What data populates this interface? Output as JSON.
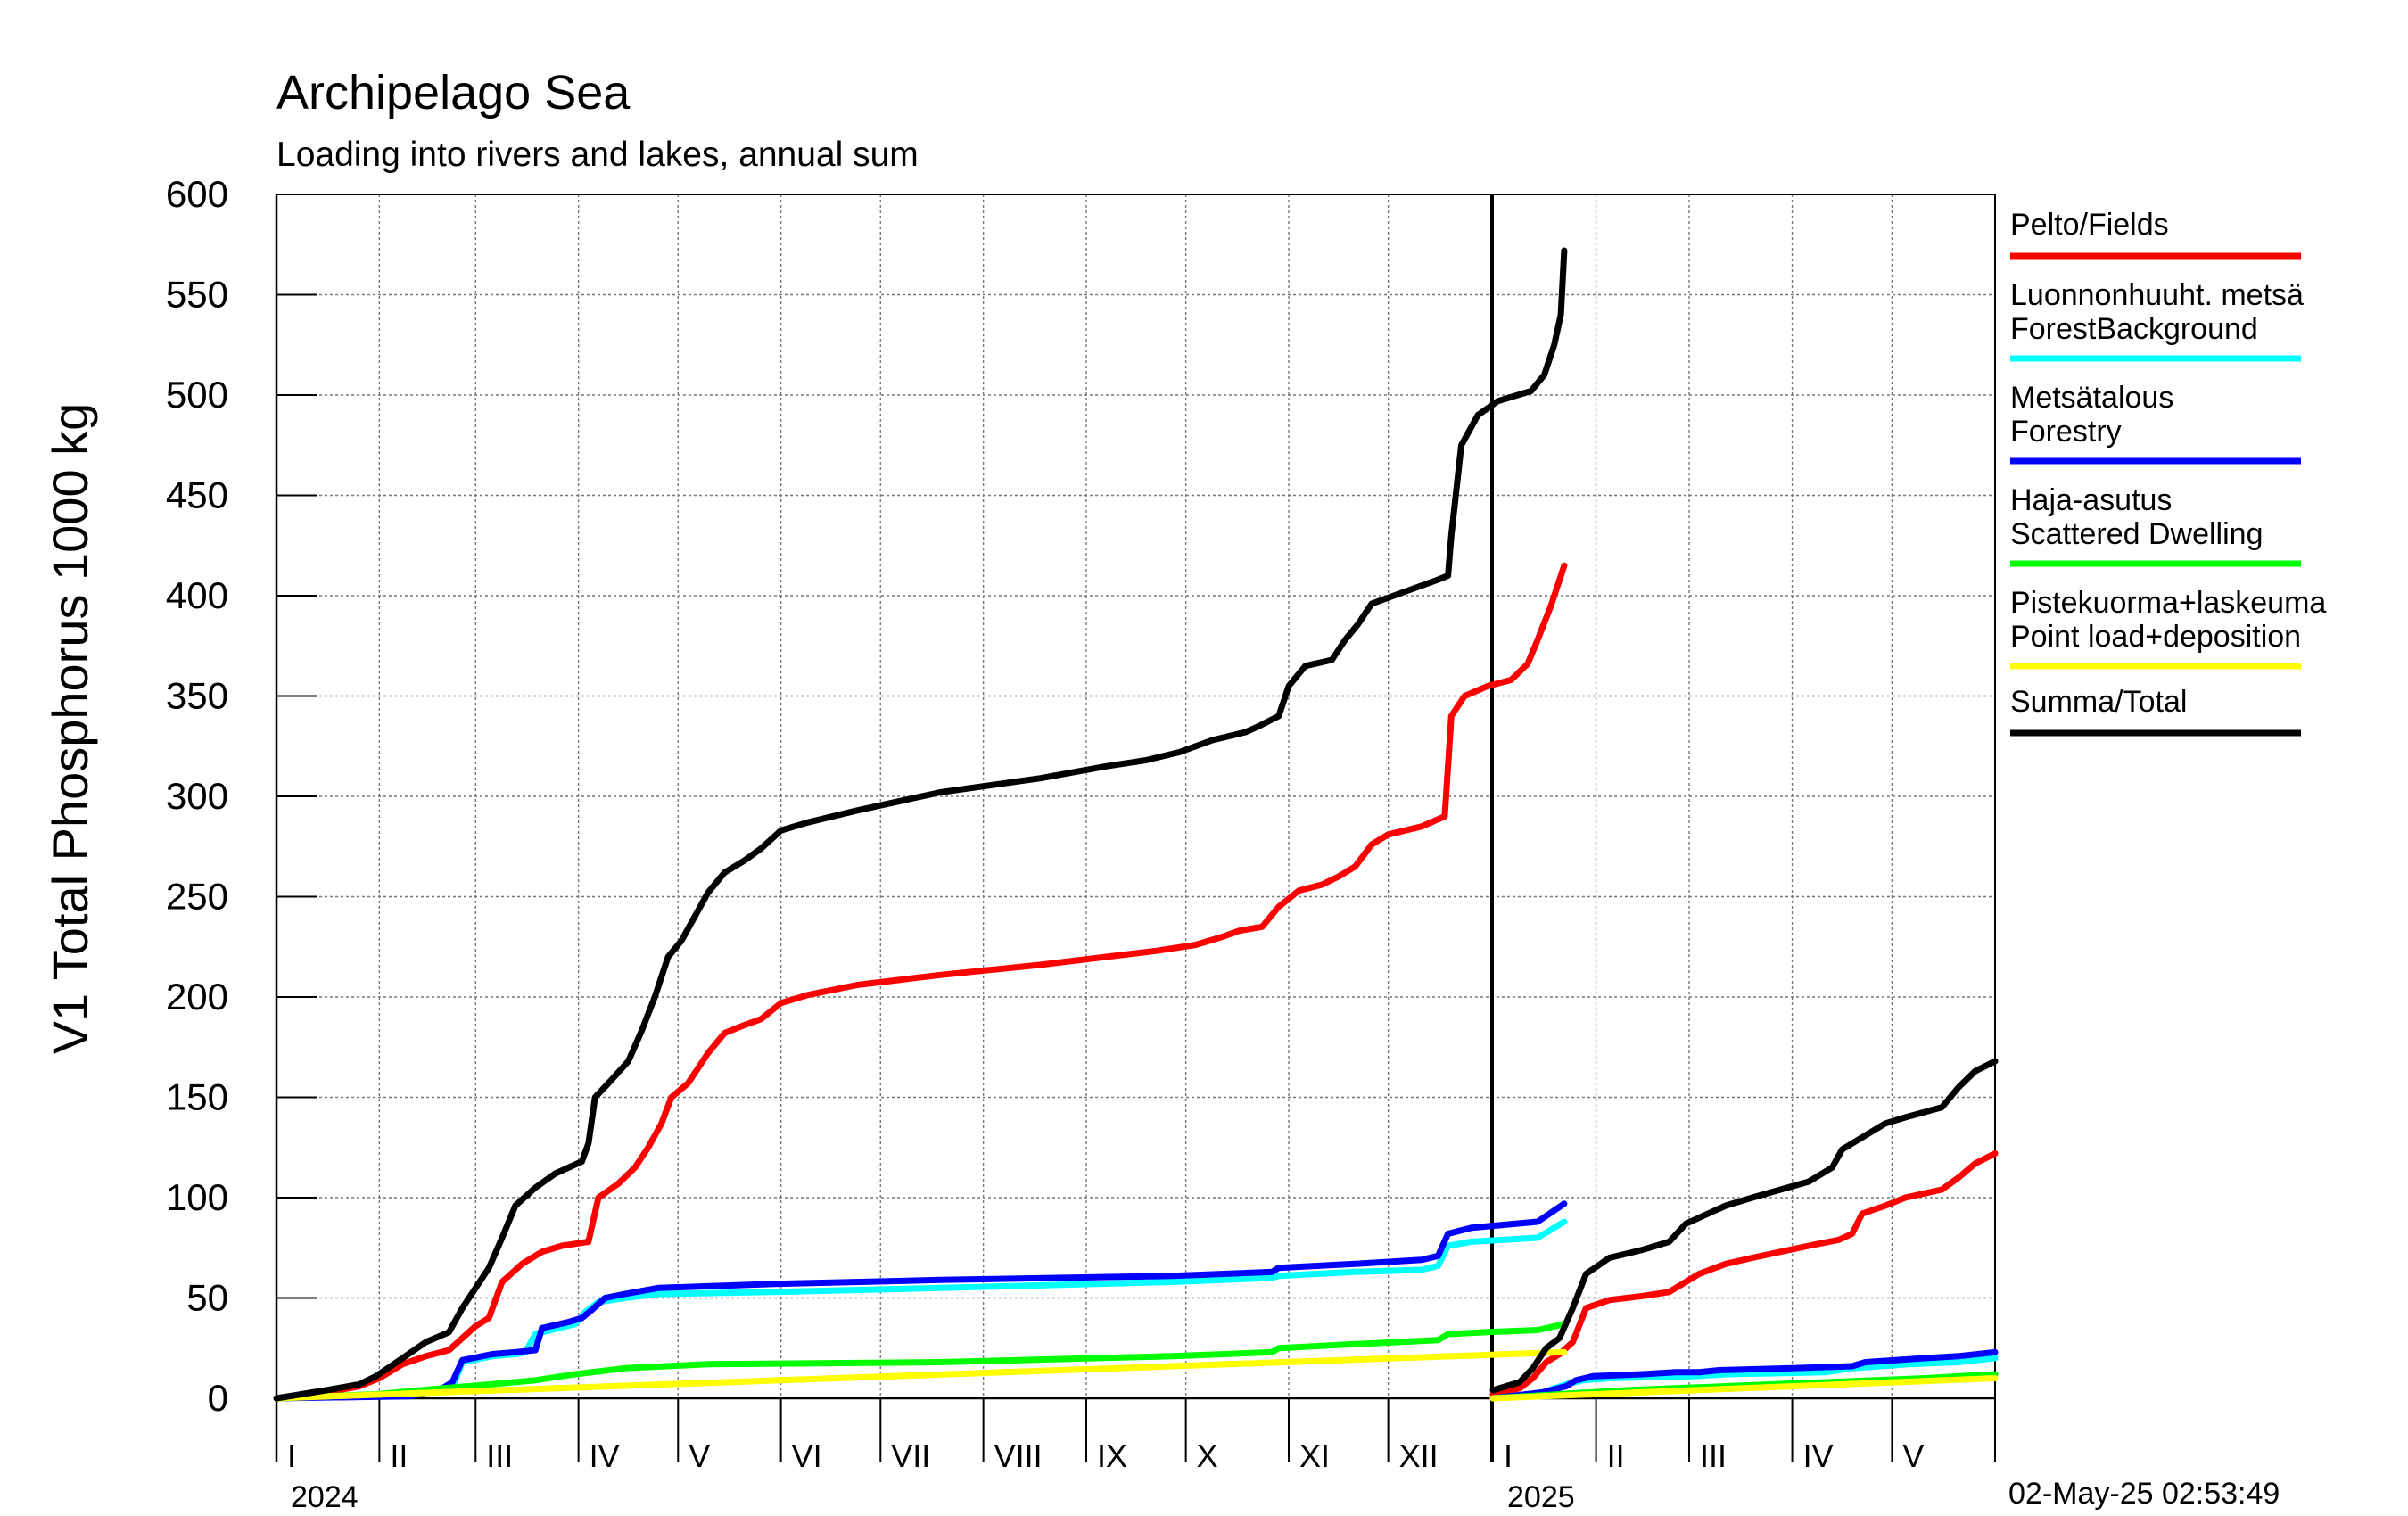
{
  "chart_data": {
    "type": "line",
    "title": "Archipelago Sea",
    "subtitle": "Loading into rivers and lakes, annual sum",
    "ylabel": "V1 Total Phosphorus 1000 kg",
    "ylim": [
      0,
      600
    ],
    "yticks": [
      0,
      50,
      100,
      150,
      200,
      250,
      300,
      350,
      400,
      450,
      500,
      550,
      600
    ],
    "grid": true,
    "legend_position": "right",
    "timestamp": "02-May-25 02:53:49",
    "panels": [
      {
        "year_label": "2024",
        "month_ticks": [
          "I",
          "II",
          "III",
          "IV",
          "V",
          "VI",
          "VII",
          "VIII",
          "IX",
          "X",
          "XI",
          "XII"
        ],
        "x_unit": "day of year",
        "xlim": [
          0,
          366
        ]
      },
      {
        "year_label": "2025",
        "month_ticks": [
          "I",
          "II",
          "III",
          "IV",
          "V"
        ],
        "x_unit": "day of year",
        "xlim": [
          0,
          151
        ]
      }
    ],
    "series": [
      {
        "name": "Pelto/Fields",
        "color": "#ff0000",
        "values_2024": [
          [
            0,
            0
          ],
          [
            15,
            3
          ],
          [
            25,
            6
          ],
          [
            31,
            10
          ],
          [
            38,
            17
          ],
          [
            45,
            21
          ],
          [
            52,
            24
          ],
          [
            56,
            30
          ],
          [
            60,
            36
          ],
          [
            64,
            40
          ],
          [
            68,
            58
          ],
          [
            74,
            67
          ],
          [
            80,
            73
          ],
          [
            86,
            76
          ],
          [
            94,
            78
          ],
          [
            97,
            100
          ],
          [
            103,
            107
          ],
          [
            108,
            115
          ],
          [
            112,
            125
          ],
          [
            116,
            137
          ],
          [
            119,
            150
          ],
          [
            124,
            157
          ],
          [
            130,
            172
          ],
          [
            135,
            182
          ],
          [
            141,
            186
          ],
          [
            146,
            189
          ],
          [
            152,
            197
          ],
          [
            160,
            201
          ],
          [
            175,
            206
          ],
          [
            200,
            211
          ],
          [
            230,
            216
          ],
          [
            250,
            220
          ],
          [
            265,
            223
          ],
          [
            277,
            226
          ],
          [
            285,
            230
          ],
          [
            290,
            233
          ],
          [
            297,
            235
          ],
          [
            302,
            245
          ],
          [
            308,
            253
          ],
          [
            315,
            256
          ],
          [
            320,
            260
          ],
          [
            325,
            265
          ],
          [
            330,
            276
          ],
          [
            335,
            281
          ],
          [
            345,
            285
          ],
          [
            352,
            290
          ],
          [
            354,
            340
          ],
          [
            358,
            350
          ],
          [
            365,
            355
          ],
          [
            372,
            358
          ],
          [
            377,
            366
          ],
          [
            380,
            378
          ],
          [
            384,
            395
          ],
          [
            388,
            415
          ]
        ],
        "values_2025": [
          [
            0,
            2
          ],
          [
            8,
            5
          ],
          [
            12,
            10
          ],
          [
            16,
            18
          ],
          [
            20,
            22
          ],
          [
            24,
            28
          ],
          [
            28,
            45
          ],
          [
            35,
            49
          ],
          [
            45,
            51
          ],
          [
            53,
            53
          ],
          [
            58,
            58
          ],
          [
            62,
            62
          ],
          [
            70,
            67
          ],
          [
            78,
            70
          ],
          [
            95,
            76
          ],
          [
            104,
            79
          ],
          [
            108,
            82
          ],
          [
            111,
            92
          ],
          [
            118,
            96
          ],
          [
            124,
            100
          ],
          [
            135,
            104
          ],
          [
            140,
            110
          ],
          [
            145,
            117
          ],
          [
            151,
            122
          ]
        ]
      },
      {
        "name": "Luonnonhuuht. metsä ForestBackground",
        "color": "#00ffff",
        "values_2024": [
          [
            0,
            0
          ],
          [
            40,
            2
          ],
          [
            46,
            3
          ],
          [
            53,
            5
          ],
          [
            56,
            18
          ],
          [
            65,
            21
          ],
          [
            72,
            22
          ],
          [
            75,
            23
          ],
          [
            78,
            32
          ],
          [
            85,
            35
          ],
          [
            90,
            37
          ],
          [
            93,
            43
          ],
          [
            97,
            48
          ],
          [
            105,
            50
          ],
          [
            115,
            52
          ],
          [
            150,
            53
          ],
          [
            200,
            55
          ],
          [
            270,
            58
          ],
          [
            300,
            60
          ],
          [
            302,
            61
          ],
          [
            325,
            63
          ],
          [
            345,
            64
          ],
          [
            350,
            66
          ],
          [
            353,
            76
          ],
          [
            360,
            78
          ],
          [
            380,
            80
          ],
          [
            388,
            88
          ]
        ],
        "values_2025": [
          [
            0,
            0
          ],
          [
            15,
            3
          ],
          [
            22,
            7
          ],
          [
            27,
            9
          ],
          [
            35,
            10
          ],
          [
            60,
            11
          ],
          [
            70,
            12
          ],
          [
            100,
            13
          ],
          [
            108,
            15
          ],
          [
            125,
            17
          ],
          [
            140,
            18
          ],
          [
            151,
            20
          ]
        ]
      },
      {
        "name": "Metsätalous Forestry",
        "color": "#0000ff",
        "values_2024": [
          [
            0,
            0
          ],
          [
            40,
            1
          ],
          [
            46,
            3
          ],
          [
            50,
            5
          ],
          [
            53,
            8
          ],
          [
            56,
            19
          ],
          [
            65,
            22
          ],
          [
            72,
            23
          ],
          [
            78,
            24
          ],
          [
            80,
            35
          ],
          [
            88,
            38
          ],
          [
            92,
            40
          ],
          [
            95,
            44
          ],
          [
            99,
            50
          ],
          [
            105,
            52
          ],
          [
            115,
            55
          ],
          [
            150,
            57
          ],
          [
            200,
            59
          ],
          [
            270,
            61
          ],
          [
            300,
            63
          ],
          [
            302,
            65
          ],
          [
            325,
            67
          ],
          [
            345,
            69
          ],
          [
            350,
            71
          ],
          [
            353,
            82
          ],
          [
            360,
            85
          ],
          [
            380,
            88
          ],
          [
            388,
            97
          ]
        ],
        "values_2025": [
          [
            0,
            0
          ],
          [
            15,
            3
          ],
          [
            22,
            6
          ],
          [
            25,
            9
          ],
          [
            30,
            11
          ],
          [
            45,
            12
          ],
          [
            55,
            13
          ],
          [
            62,
            13
          ],
          [
            68,
            14
          ],
          [
            90,
            15
          ],
          [
            108,
            16
          ],
          [
            112,
            18
          ],
          [
            130,
            20
          ],
          [
            140,
            21
          ],
          [
            151,
            23
          ]
        ]
      },
      {
        "name": "Haja-asutus Scattered Dwelling",
        "color": "#00ff00",
        "values_2024": [
          [
            0,
            0
          ],
          [
            30,
            2
          ],
          [
            50,
            5
          ],
          [
            65,
            7
          ],
          [
            78,
            9
          ],
          [
            90,
            12
          ],
          [
            105,
            15
          ],
          [
            130,
            17
          ],
          [
            200,
            18
          ],
          [
            270,
            21
          ],
          [
            300,
            23
          ],
          [
            302,
            25
          ],
          [
            325,
            27
          ],
          [
            350,
            29
          ],
          [
            353,
            32
          ],
          [
            365,
            33
          ],
          [
            380,
            34
          ],
          [
            388,
            37
          ]
        ],
        "values_2025": [
          [
            0,
            0
          ],
          [
            20,
            2
          ],
          [
            40,
            4
          ],
          [
            70,
            6
          ],
          [
            100,
            8
          ],
          [
            115,
            9
          ],
          [
            130,
            10
          ],
          [
            151,
            12
          ]
        ]
      },
      {
        "name": "Pistekuorma+laskeuma Point load+deposition",
        "color": "#ffff00",
        "values_2024": [
          [
            0,
            0
          ],
          [
            388,
            23
          ]
        ],
        "values_2025": [
          [
            0,
            0
          ],
          [
            151,
            10
          ]
        ]
      },
      {
        "name": "Summa/Total",
        "color": "#000000",
        "values_2024": [
          [
            0,
            0
          ],
          [
            15,
            4
          ],
          [
            25,
            7
          ],
          [
            30,
            11
          ],
          [
            38,
            20
          ],
          [
            45,
            28
          ],
          [
            52,
            33
          ],
          [
            56,
            45
          ],
          [
            60,
            55
          ],
          [
            64,
            65
          ],
          [
            68,
            80
          ],
          [
            72,
            96
          ],
          [
            78,
            105
          ],
          [
            84,
            112
          ],
          [
            92,
            118
          ],
          [
            94,
            127
          ],
          [
            96,
            150
          ],
          [
            100,
            157
          ],
          [
            106,
            168
          ],
          [
            110,
            183
          ],
          [
            114,
            200
          ],
          [
            118,
            220
          ],
          [
            122,
            228
          ],
          [
            126,
            240
          ],
          [
            130,
            252
          ],
          [
            135,
            262
          ],
          [
            141,
            268
          ],
          [
            146,
            274
          ],
          [
            152,
            283
          ],
          [
            160,
            287
          ],
          [
            175,
            293
          ],
          [
            200,
            302
          ],
          [
            230,
            309
          ],
          [
            250,
            315
          ],
          [
            262,
            318
          ],
          [
            272,
            322
          ],
          [
            282,
            328
          ],
          [
            292,
            332
          ],
          [
            296,
            335
          ],
          [
            302,
            340
          ],
          [
            305,
            355
          ],
          [
            310,
            365
          ],
          [
            318,
            368
          ],
          [
            322,
            378
          ],
          [
            326,
            386
          ],
          [
            330,
            396
          ],
          [
            340,
            402
          ],
          [
            350,
            408
          ],
          [
            353,
            410
          ],
          [
            354,
            430
          ],
          [
            357,
            475
          ],
          [
            362,
            490
          ],
          [
            368,
            497
          ],
          [
            378,
            502
          ],
          [
            382,
            510
          ],
          [
            385,
            525
          ],
          [
            387,
            540
          ],
          [
            388,
            572
          ]
        ],
        "values_2025": [
          [
            0,
            4
          ],
          [
            8,
            8
          ],
          [
            12,
            15
          ],
          [
            16,
            25
          ],
          [
            20,
            30
          ],
          [
            24,
            45
          ],
          [
            28,
            62
          ],
          [
            35,
            70
          ],
          [
            45,
            74
          ],
          [
            53,
            78
          ],
          [
            58,
            87
          ],
          [
            62,
            90
          ],
          [
            70,
            96
          ],
          [
            78,
            100
          ],
          [
            95,
            108
          ],
          [
            102,
            115
          ],
          [
            105,
            124
          ],
          [
            111,
            130
          ],
          [
            118,
            137
          ],
          [
            124,
            140
          ],
          [
            135,
            145
          ],
          [
            140,
            155
          ],
          [
            145,
            163
          ],
          [
            151,
            168
          ]
        ]
      }
    ]
  }
}
